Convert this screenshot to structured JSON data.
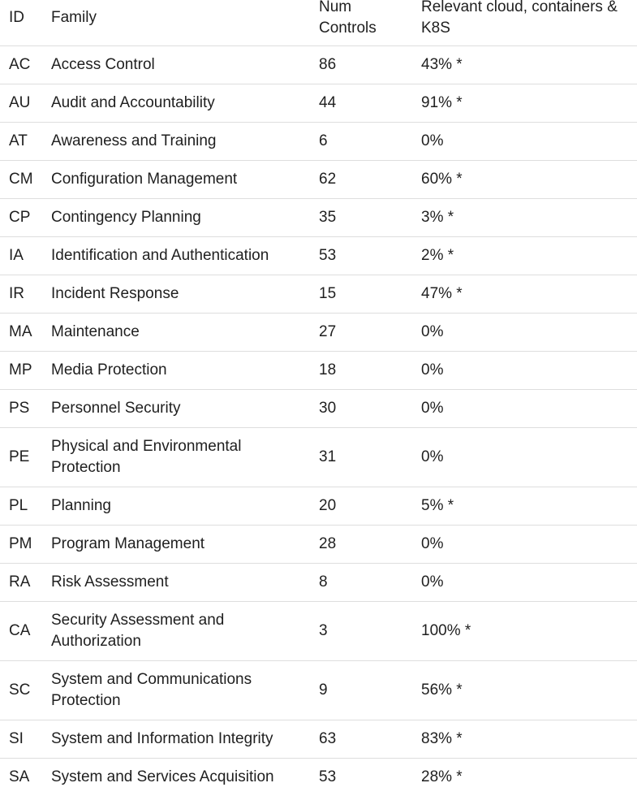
{
  "table": {
    "headers": {
      "id": "ID",
      "family": "Family",
      "num_controls": "Num Controls",
      "relevant": "Relevant cloud, containers & K8S"
    },
    "rows": [
      {
        "id": "AC",
        "family": "Access Control",
        "num": "86",
        "relevant": "43% *"
      },
      {
        "id": "AU",
        "family": "Audit and Accountability",
        "num": "44",
        "relevant": "91% *"
      },
      {
        "id": "AT",
        "family": "Awareness and Training",
        "num": "6",
        "relevant": "0%"
      },
      {
        "id": "CM",
        "family": "Configuration Management",
        "num": "62",
        "relevant": "60% *"
      },
      {
        "id": "CP",
        "family": "Contingency Planning",
        "num": "35",
        "relevant": "3% *"
      },
      {
        "id": "IA",
        "family": "Identification and Authentication",
        "num": "53",
        "relevant": "2% *"
      },
      {
        "id": "IR",
        "family": "Incident Response",
        "num": "15",
        "relevant": "47% *"
      },
      {
        "id": "MA",
        "family": "Maintenance",
        "num": "27",
        "relevant": "0%"
      },
      {
        "id": "MP",
        "family": "Media Protection",
        "num": "18",
        "relevant": "0%"
      },
      {
        "id": "PS",
        "family": "Personnel Security",
        "num": "30",
        "relevant": "0%"
      },
      {
        "id": "PE",
        "family": "Physical and Environmental Protection",
        "num": "31",
        "relevant": "0%"
      },
      {
        "id": "PL",
        "family": "Planning",
        "num": "20",
        "relevant": "5% *"
      },
      {
        "id": "PM",
        "family": "Program Management",
        "num": "28",
        "relevant": "0%"
      },
      {
        "id": "RA",
        "family": "Risk Assessment",
        "num": "8",
        "relevant": "0%"
      },
      {
        "id": "CA",
        "family": "Security Assessment and Authorization",
        "num": "3",
        "relevant": "100% *"
      },
      {
        "id": "SC",
        "family": "System and Communications Protection",
        "num": "9",
        "relevant": "56% *"
      },
      {
        "id": "SI",
        "family": "System and Information Integrity",
        "num": "63",
        "relevant": "83% *"
      },
      {
        "id": "SA",
        "family": "System and Services Acquisition",
        "num": "53",
        "relevant": "28% *"
      }
    ]
  }
}
